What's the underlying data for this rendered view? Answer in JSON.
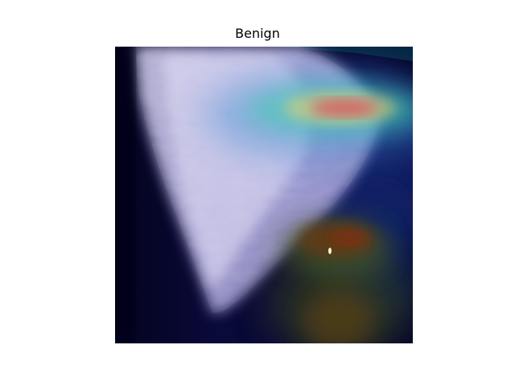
{
  "figure": {
    "title": "Benign"
  },
  "image": {
    "description_icon": "mammogram-heatmap-overlay-image"
  },
  "colors": {
    "background": "#ffffff",
    "title_text": "#000000",
    "base_dark": "#030320",
    "tissue": "#cfcaf0",
    "heat_high": "#e0475c",
    "heat_mid": "#3fd0b0",
    "heat_warm": "#6b3a0e"
  }
}
